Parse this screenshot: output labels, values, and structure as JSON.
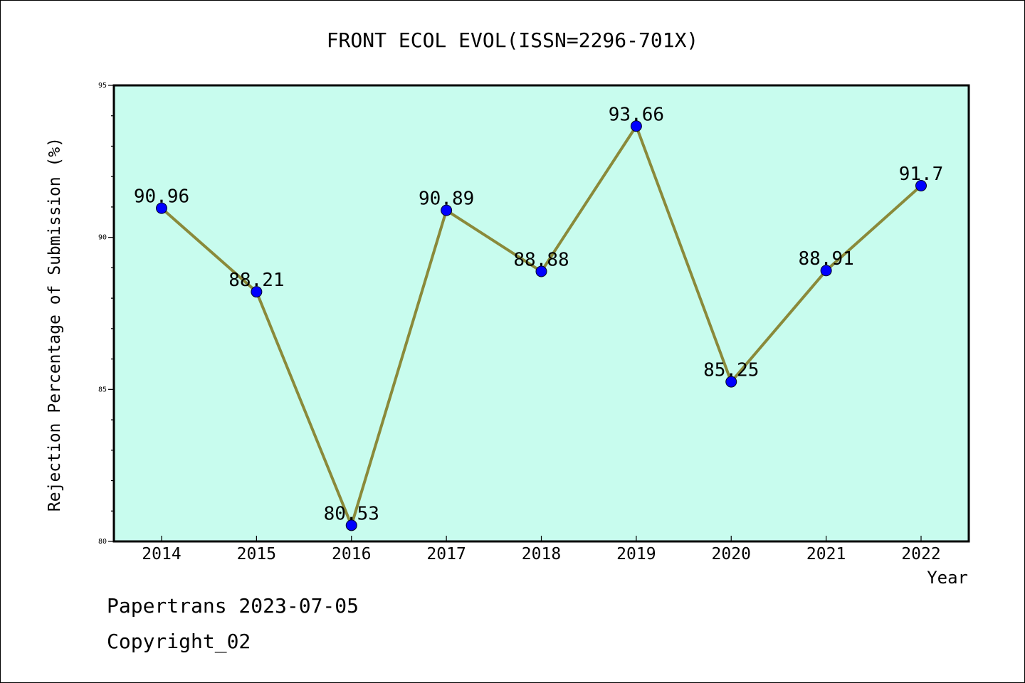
{
  "chart_data": {
    "type": "line",
    "title": "FRONT ECOL EVOL(ISSN=2296-701X)",
    "xlabel": "Year",
    "ylabel": "Rejection Percentage of Submission (%)",
    "categories": [
      "2014",
      "2015",
      "2016",
      "2017",
      "2018",
      "2019",
      "2020",
      "2021",
      "2022"
    ],
    "values": [
      90.96,
      88.21,
      80.53,
      90.89,
      88.88,
      93.66,
      85.25,
      88.91,
      91.7
    ],
    "data_labels": [
      "90.96",
      "88.21",
      "80.53",
      "90.89",
      "88.88",
      "93.66",
      "85.25",
      "88.91",
      "91.7"
    ],
    "ylim": [
      80,
      95
    ],
    "yticks": [
      "80",
      "85",
      "90",
      "95"
    ],
    "grid": false,
    "colors": {
      "plot_background": "#c8fcee",
      "line": "#8a8a3a",
      "marker": "#0000ff"
    }
  },
  "footer": {
    "line1": "Papertrans 2023-07-05",
    "line2": "Copyright_02"
  }
}
